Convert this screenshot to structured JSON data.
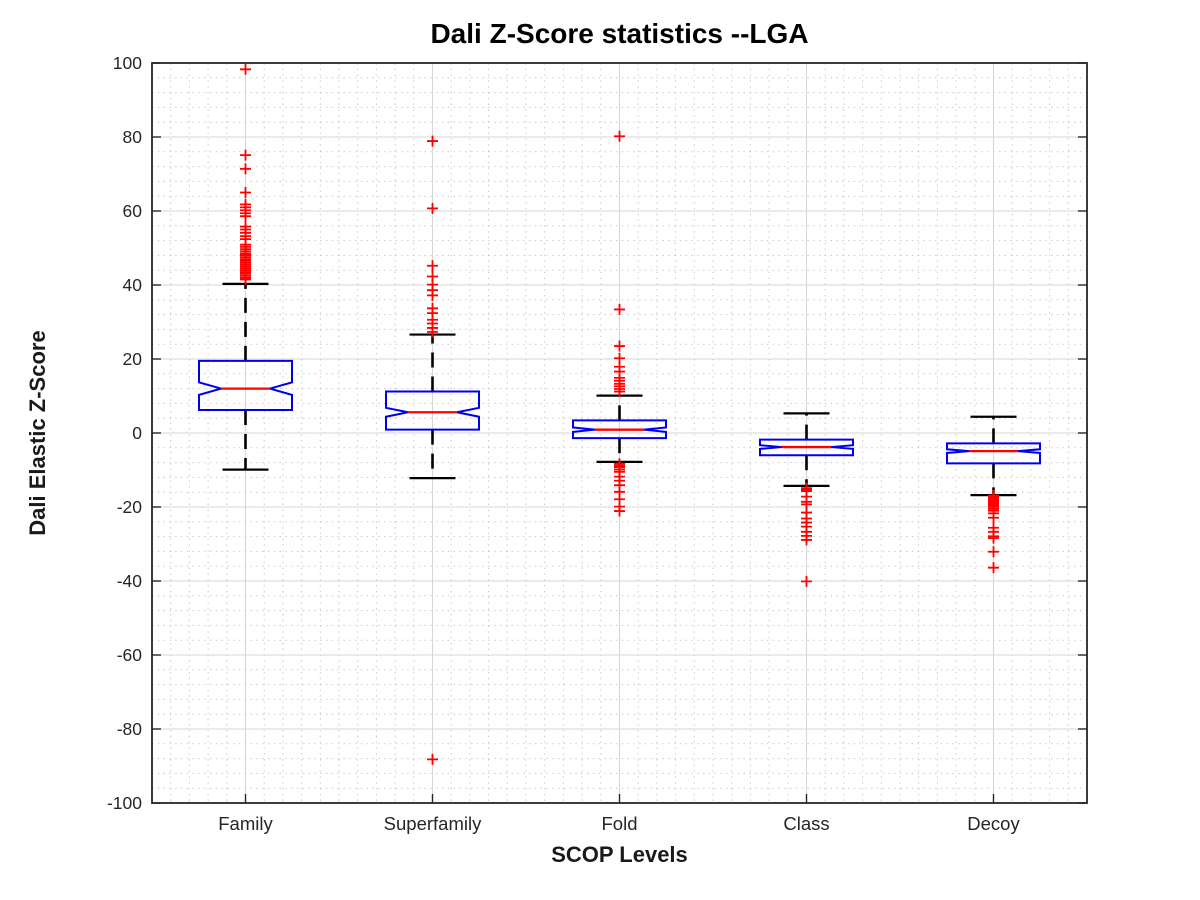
{
  "figure": {
    "title": "Dali Z-Score statistics --LGA",
    "xlabel": "SCOP Levels",
    "ylabel": "Dali Elastic Z-Score"
  },
  "chart_data": {
    "type": "boxplot",
    "title": "Dali Z-Score statistics --LGA",
    "xlabel": "SCOP Levels",
    "ylabel": "Dali Elastic Z-Score",
    "categories": [
      "Family",
      "Superfamily",
      "Fold",
      "Class",
      "Decoy"
    ],
    "ylim": [
      -100,
      100
    ],
    "ytick_step": 20,
    "yticklabels": [
      "100",
      "80",
      "60",
      "40",
      "20",
      "0",
      "-20",
      "-40",
      "-60",
      "-80",
      "-100"
    ],
    "grid": {
      "major": true,
      "minor": true,
      "minor_style": "dotted",
      "legend": "none"
    },
    "notched": true,
    "colors": {
      "box": "#0000ee",
      "median": "#ff0000",
      "whisker": "#000000",
      "outlier": "#ff0000",
      "grid_major": "#d7d7d7",
      "grid_minor": "#b9b9b9",
      "axis": "#262626",
      "title": "#000000"
    },
    "series": [
      {
        "name": "Family",
        "whisker_low": -9.9,
        "q1": 6.2,
        "median": 12.0,
        "q3": 19.5,
        "whisker_high": 40.3,
        "notch_half_height": 1.7,
        "outliers": [
          98.3,
          75.1,
          71.4,
          65.0,
          61.8,
          61.0,
          60.2,
          59.4,
          58.6,
          55.8,
          55.0,
          54.1,
          53.2,
          52.4,
          50.9,
          50.3,
          49.7,
          49.1,
          48.5,
          48.0,
          47.5,
          47.0,
          46.5,
          46.0,
          45.5,
          45.0,
          44.5,
          44.0,
          43.5,
          43.0,
          42.5,
          42.0,
          41.5
        ]
      },
      {
        "name": "Superfamily",
        "whisker_low": -12.2,
        "q1": 0.9,
        "median": 5.6,
        "q3": 11.2,
        "whisker_high": 26.6,
        "notch_half_height": 1.2,
        "outliers": [
          78.9,
          60.7,
          45.2,
          42.3,
          40.1,
          38.6,
          37.2,
          33.7,
          32.4,
          30.6,
          29.6,
          28.4,
          27.3,
          -88.2
        ]
      },
      {
        "name": "Fold",
        "whisker_low": -7.8,
        "q1": -1.4,
        "median": 0.9,
        "q3": 3.4,
        "whisker_high": 10.1,
        "notch_half_height": 0.6,
        "outliers": [
          80.2,
          33.4,
          23.5,
          20.2,
          17.9,
          16.6,
          14.9,
          14.1,
          13.3,
          12.6,
          11.9,
          11.2,
          -8.3,
          -8.8,
          -9.3,
          -9.9,
          -10.5,
          -11.8,
          -12.9,
          -14.1,
          -15.9,
          -17.9,
          -19.9,
          -21.1
        ]
      },
      {
        "name": "Class",
        "whisker_low": -14.3,
        "q1": -6.0,
        "median": -3.8,
        "q3": -1.8,
        "whisker_high": 5.3,
        "notch_half_height": 0.5,
        "outliers": [
          -14.9,
          -15.3,
          -15.7,
          -17.2,
          -18.6,
          -19.3,
          -21.5,
          -23.1,
          -24.2,
          -25.3,
          -26.7,
          -27.8,
          -28.9,
          -40.1
        ]
      },
      {
        "name": "Decoy",
        "whisker_low": -16.8,
        "q1": -8.2,
        "median": -4.9,
        "q3": -2.8,
        "whisker_high": 4.4,
        "notch_half_height": 0.5,
        "outliers": [
          -16.9,
          -17.2,
          -17.5,
          -17.8,
          -18.1,
          -18.4,
          -18.8,
          -19.2,
          -19.6,
          -20.0,
          -20.5,
          -21.0,
          -21.7,
          -22.9,
          -25.6,
          -26.7,
          -27.9,
          -28.4,
          -32.1,
          -36.4
        ]
      }
    ]
  }
}
